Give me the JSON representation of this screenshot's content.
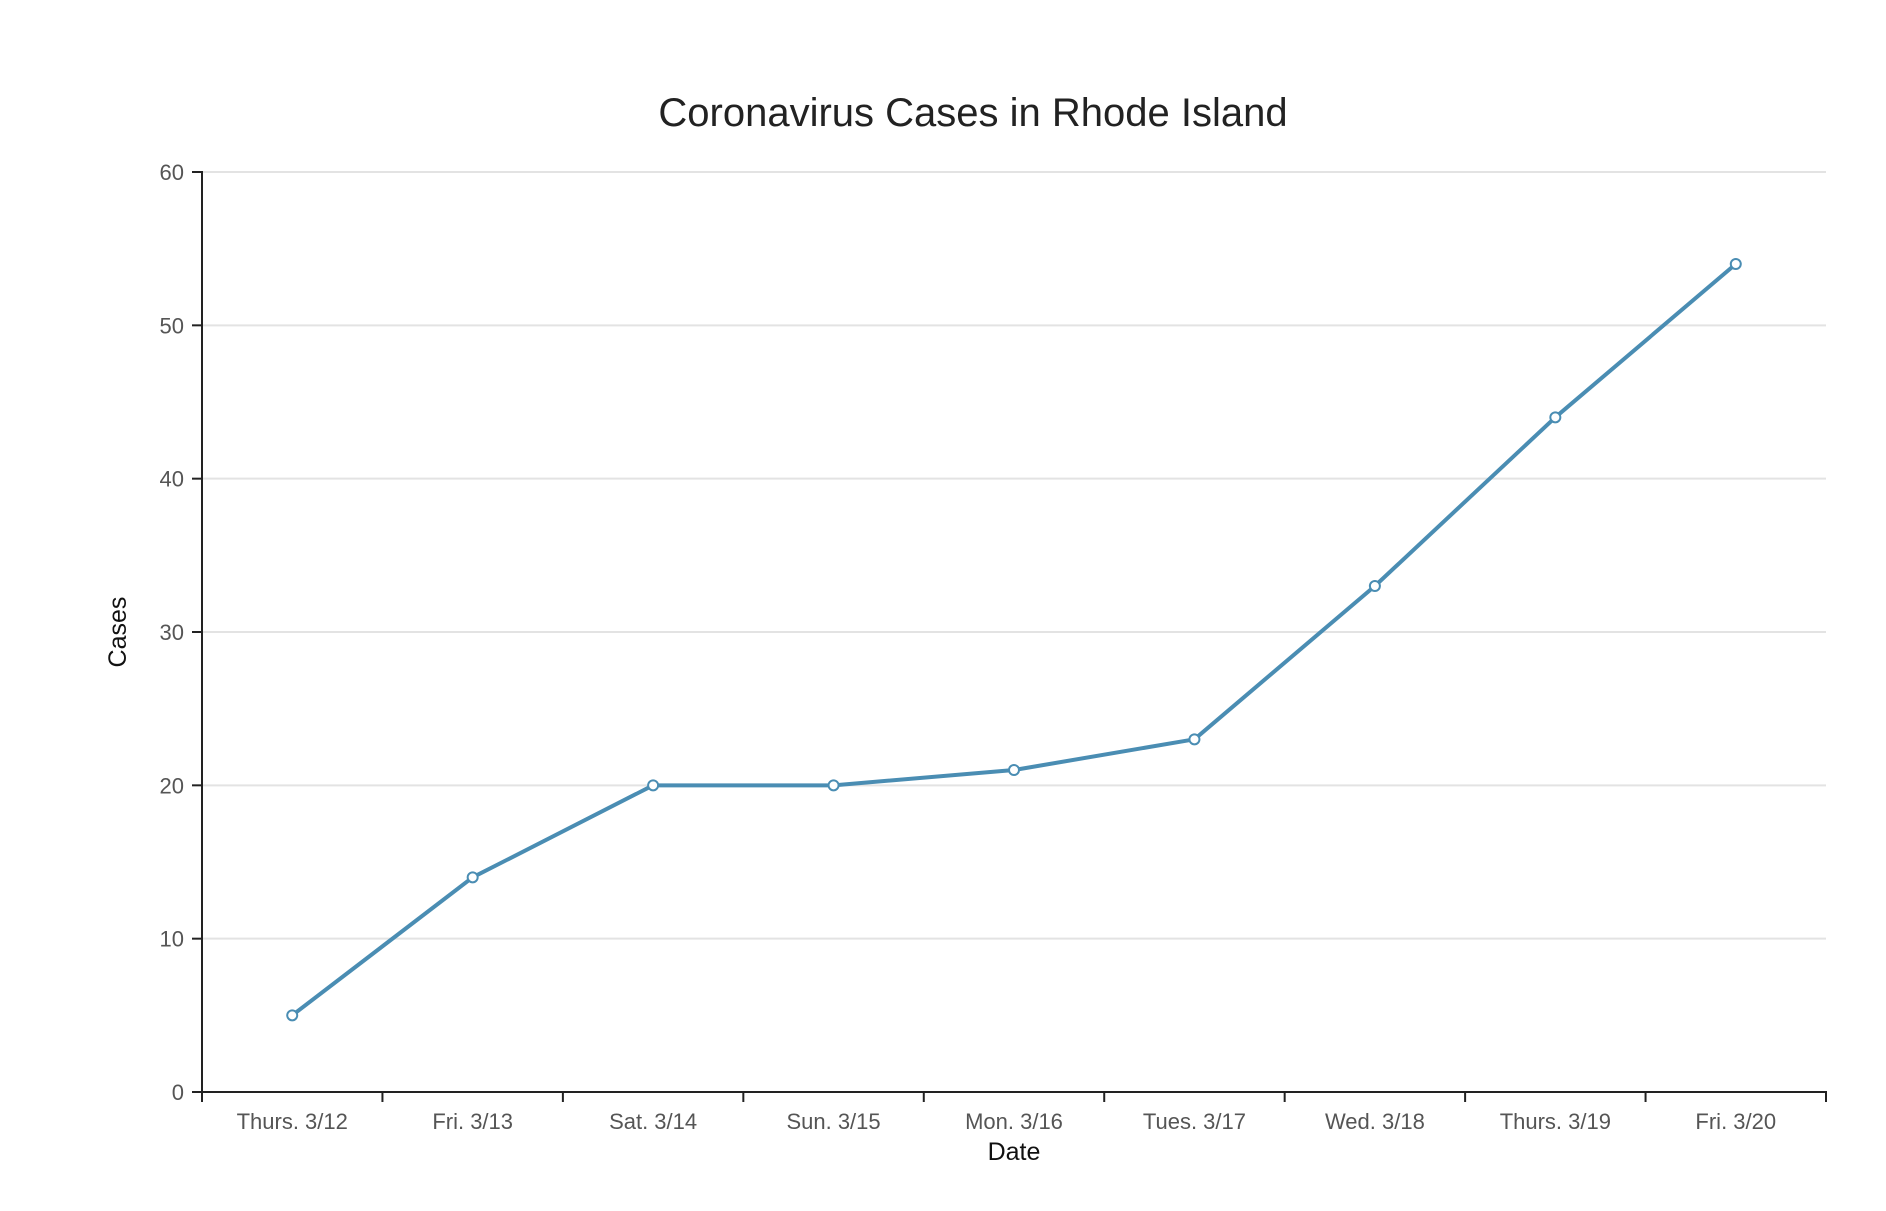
{
  "chart_data": {
    "type": "line",
    "title": "Coronavirus Cases in Rhode Island",
    "xlabel": "Date",
    "ylabel": "Cases",
    "categories": [
      "Thurs. 3/12",
      "Fri. 3/13",
      "Sat. 3/14",
      "Sun. 3/15",
      "Mon. 3/16",
      "Tues. 3/17",
      "Wed. 3/18",
      "Thurs. 3/19",
      "Fri. 3/20"
    ],
    "series": [
      {
        "values": [
          5,
          14,
          20,
          20,
          21,
          23,
          33,
          44,
          54
        ],
        "color": "#4a8db3"
      }
    ],
    "ylim": [
      0,
      60
    ],
    "yticks": [
      0,
      10,
      20,
      30,
      40,
      50,
      60
    ],
    "grid": true,
    "legend": "none"
  }
}
